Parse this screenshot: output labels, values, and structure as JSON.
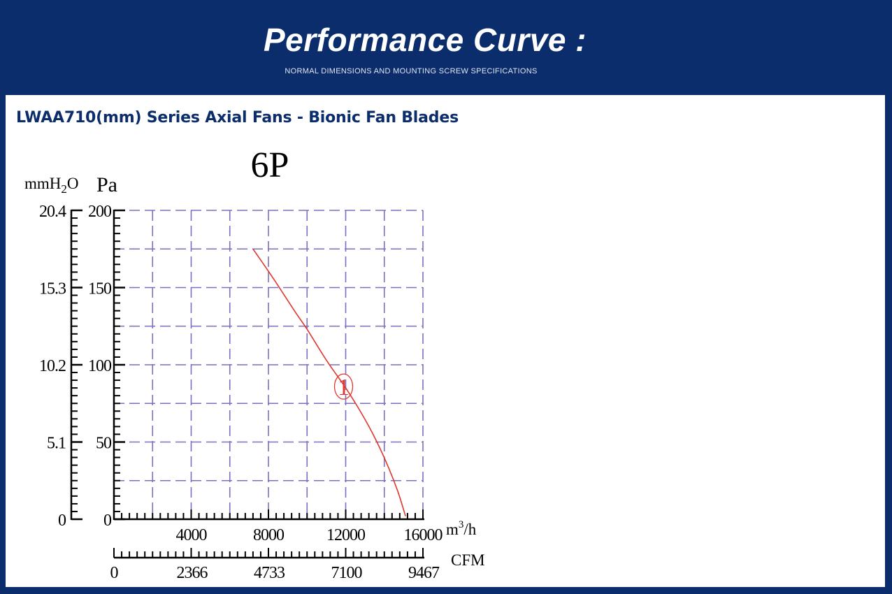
{
  "header": {
    "title": "Performance Curve :",
    "subtitle": "NORMAL DIMENSIONS AND MOUNTING SCREW SPECIFICATIONS"
  },
  "panel": {
    "series_title": "LWAA710(mm) Series Axial Fans - Bionic Fan Blades"
  },
  "colors": {
    "header_bg": "#0c2d6b",
    "grid": "#7a6fc0",
    "curve": "#e0362f",
    "axis": "#000000"
  },
  "chart_data": {
    "type": "line",
    "title": "6P",
    "xlabel": "m³/h",
    "x_unit_base": "m",
    "x_unit_sup": "3",
    "x_unit_tail": "/h",
    "xlim": [
      0,
      16000
    ],
    "x_ticks": [
      4000,
      8000,
      12000,
      16000
    ],
    "x_tick_labels": [
      "4000",
      "8000",
      "12000",
      "16000"
    ],
    "x2_label": "CFM",
    "x2_tick_labels": [
      "0",
      "2366",
      "4733",
      "7100",
      "9467"
    ],
    "ylabel": "Pa",
    "ylabel2": "mmH₂O",
    "ylabel2_base": "mmH",
    "ylabel2_sub": "2",
    "ylabel2_tail": "O",
    "ylim": [
      0,
      200
    ],
    "y_ticks": [
      0,
      50,
      100,
      150,
      200
    ],
    "y_tick_labels": [
      "0",
      "50",
      "100",
      "150",
      "200"
    ],
    "y2_tick_labels": [
      "0",
      "5.1",
      "10.2",
      "15.3",
      "20.4"
    ],
    "grid": true,
    "series": [
      {
        "name": "1",
        "x": [
          7200,
          8300,
          9400,
          10000,
          11000,
          12000,
          12800,
          13500,
          14200,
          14700,
          15100
        ],
        "y": [
          175,
          155,
          134,
          123,
          103,
          85,
          69,
          53,
          34,
          18,
          2
        ]
      }
    ],
    "annotations": [
      {
        "text": "1",
        "x": 12000,
        "y": 85
      }
    ]
  }
}
